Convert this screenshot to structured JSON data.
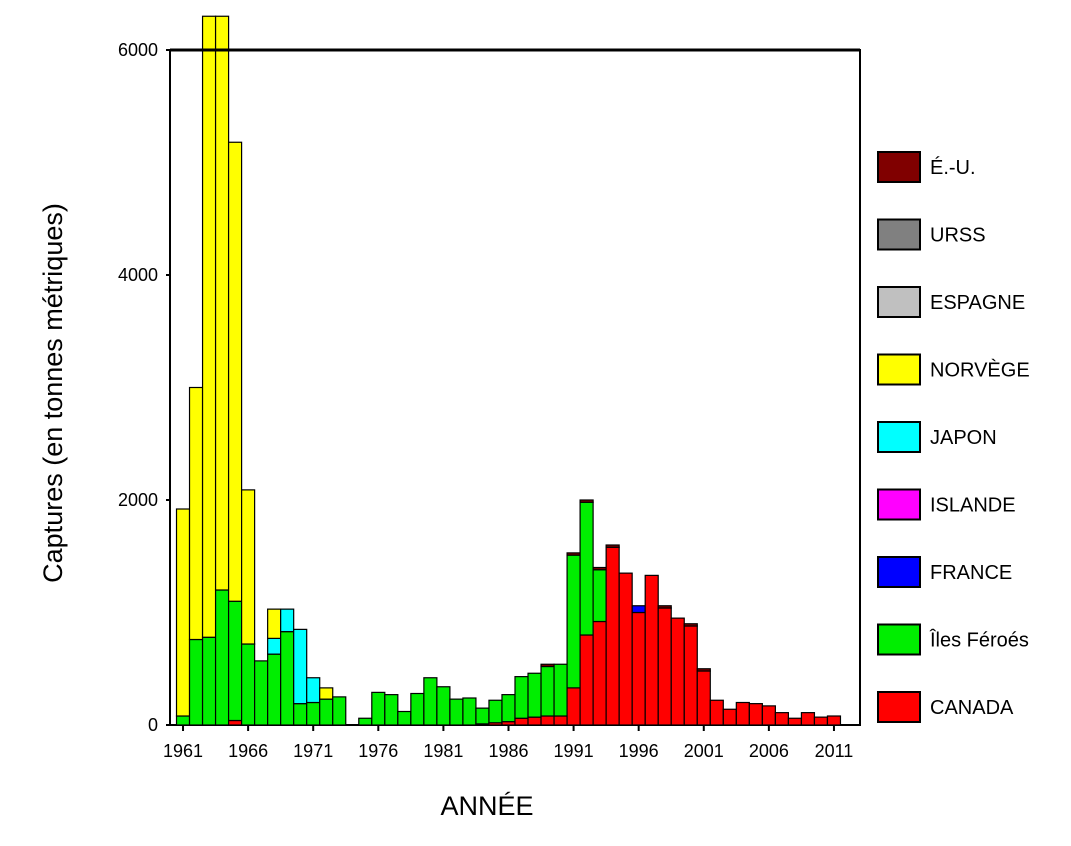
{
  "chart_data": {
    "type": "bar",
    "stacked": true,
    "xlabel": "ANNÉE",
    "ylabel": "Captures (en tonnes métriques)",
    "ylim": [
      0,
      6000
    ],
    "xlim": [
      1960,
      2013
    ],
    "yticks": [
      0,
      2000,
      4000,
      6000
    ],
    "xticks": [
      1961,
      1966,
      1971,
      1976,
      1981,
      1986,
      1991,
      1996,
      2001,
      2006,
      2011
    ],
    "grid": false,
    "legend_position": "right",
    "stack_order": [
      "CANADA",
      "Îles Féroés",
      "FRANCE",
      "ISLANDE",
      "JAPON",
      "NORVÈGE",
      "ESPAGNE",
      "URSS",
      "É.-U."
    ],
    "legend_order": [
      "É.-U.",
      "URSS",
      "ESPAGNE",
      "NORVÈGE",
      "JAPON",
      "ISLANDE",
      "FRANCE",
      "Îles Féroés",
      "CANADA"
    ],
    "colors": {
      "CANADA": "#ff0000",
      "Îles Féroés": "#00ee00",
      "FRANCE": "#0000ff",
      "ISLANDE": "#ff00ff",
      "JAPON": "#00ffff",
      "NORVÈGE": "#ffff00",
      "ESPAGNE": "#c0c0c0",
      "URSS": "#808080",
      "É.-U.": "#800000"
    },
    "categories": [
      1961,
      1962,
      1963,
      1964,
      1965,
      1966,
      1967,
      1968,
      1969,
      1970,
      1971,
      1972,
      1973,
      1974,
      1975,
      1976,
      1977,
      1978,
      1979,
      1980,
      1981,
      1982,
      1983,
      1984,
      1985,
      1986,
      1987,
      1988,
      1989,
      1990,
      1991,
      1992,
      1993,
      1994,
      1995,
      1996,
      1997,
      1998,
      1999,
      2000,
      2001,
      2002,
      2003,
      2004,
      2005,
      2006,
      2007,
      2008,
      2009,
      2010,
      2011
    ],
    "series": [
      {
        "name": "CANADA",
        "values": [
          0,
          0,
          0,
          0,
          40,
          0,
          0,
          0,
          0,
          0,
          0,
          0,
          0,
          0,
          0,
          0,
          0,
          0,
          0,
          0,
          0,
          0,
          0,
          10,
          20,
          30,
          60,
          70,
          80,
          80,
          330,
          800,
          920,
          1580,
          1350,
          1000,
          1330,
          1040,
          950,
          880,
          480,
          220,
          140,
          200,
          190,
          170,
          110,
          60,
          110,
          70,
          80
        ]
      },
      {
        "name": "Îles Féroés",
        "values": [
          80,
          760,
          780,
          1200,
          1060,
          720,
          570,
          630,
          830,
          190,
          200,
          230,
          250,
          0,
          60,
          290,
          270,
          120,
          280,
          420,
          340,
          230,
          240,
          140,
          200,
          240,
          370,
          390,
          440,
          460,
          1180,
          1180,
          460,
          0,
          0,
          0,
          0,
          0,
          0,
          0,
          0,
          0,
          0,
          0,
          0,
          0,
          0,
          0,
          0,
          0,
          0
        ]
      },
      {
        "name": "FRANCE",
        "values": [
          0,
          0,
          0,
          0,
          0,
          0,
          0,
          0,
          0,
          0,
          0,
          0,
          0,
          0,
          0,
          0,
          0,
          0,
          0,
          0,
          0,
          0,
          0,
          0,
          0,
          0,
          0,
          0,
          0,
          0,
          0,
          0,
          0,
          0,
          0,
          60,
          0,
          0,
          0,
          0,
          0,
          0,
          0,
          0,
          0,
          0,
          0,
          0,
          0,
          0,
          0
        ]
      },
      {
        "name": "ISLANDE",
        "values": [
          0,
          0,
          0,
          0,
          0,
          0,
          0,
          0,
          0,
          0,
          0,
          0,
          0,
          0,
          0,
          0,
          0,
          0,
          0,
          0,
          0,
          0,
          0,
          0,
          0,
          0,
          0,
          0,
          0,
          0,
          0,
          0,
          0,
          0,
          0,
          0,
          0,
          0,
          0,
          0,
          0,
          0,
          0,
          0,
          0,
          0,
          0,
          0,
          0,
          0,
          0
        ]
      },
      {
        "name": "JAPON",
        "values": [
          0,
          0,
          0,
          0,
          0,
          0,
          0,
          140,
          200,
          660,
          220,
          0,
          0,
          0,
          0,
          0,
          0,
          0,
          0,
          0,
          0,
          0,
          0,
          0,
          0,
          0,
          0,
          0,
          0,
          0,
          0,
          0,
          0,
          0,
          0,
          0,
          0,
          0,
          0,
          0,
          0,
          0,
          0,
          0,
          0,
          0,
          0,
          0,
          0,
          0,
          0
        ]
      },
      {
        "name": "NORVÈGE",
        "values": [
          1840,
          2240,
          5520,
          5100,
          4080,
          1370,
          0,
          260,
          0,
          0,
          0,
          100,
          0,
          0,
          0,
          0,
          0,
          0,
          0,
          0,
          0,
          0,
          0,
          0,
          0,
          0,
          0,
          0,
          0,
          0,
          0,
          0,
          0,
          0,
          0,
          0,
          0,
          0,
          0,
          0,
          0,
          0,
          0,
          0,
          0,
          0,
          0,
          0,
          0,
          0,
          0
        ]
      },
      {
        "name": "ESPAGNE",
        "values": [
          0,
          0,
          0,
          0,
          0,
          0,
          0,
          0,
          0,
          0,
          0,
          0,
          0,
          0,
          0,
          0,
          0,
          0,
          0,
          0,
          0,
          0,
          0,
          0,
          0,
          0,
          0,
          0,
          0,
          0,
          0,
          0,
          0,
          0,
          0,
          0,
          0,
          0,
          0,
          0,
          0,
          0,
          0,
          0,
          0,
          0,
          0,
          0,
          0,
          0,
          0
        ]
      },
      {
        "name": "URSS",
        "values": [
          0,
          0,
          0,
          0,
          0,
          0,
          0,
          0,
          0,
          0,
          0,
          0,
          0,
          0,
          0,
          0,
          0,
          0,
          0,
          0,
          0,
          0,
          0,
          0,
          0,
          0,
          0,
          0,
          0,
          0,
          0,
          0,
          0,
          0,
          0,
          0,
          0,
          0,
          0,
          0,
          0,
          0,
          0,
          0,
          0,
          0,
          0,
          0,
          0,
          0,
          0
        ]
      },
      {
        "name": "É.-U.",
        "values": [
          0,
          0,
          0,
          0,
          0,
          0,
          0,
          0,
          0,
          0,
          0,
          0,
          0,
          0,
          0,
          0,
          0,
          0,
          0,
          0,
          0,
          0,
          0,
          0,
          0,
          0,
          0,
          0,
          20,
          0,
          20,
          20,
          20,
          20,
          0,
          0,
          0,
          20,
          0,
          20,
          20,
          0,
          0,
          0,
          0,
          0,
          0,
          0,
          0,
          0,
          0
        ]
      }
    ]
  }
}
